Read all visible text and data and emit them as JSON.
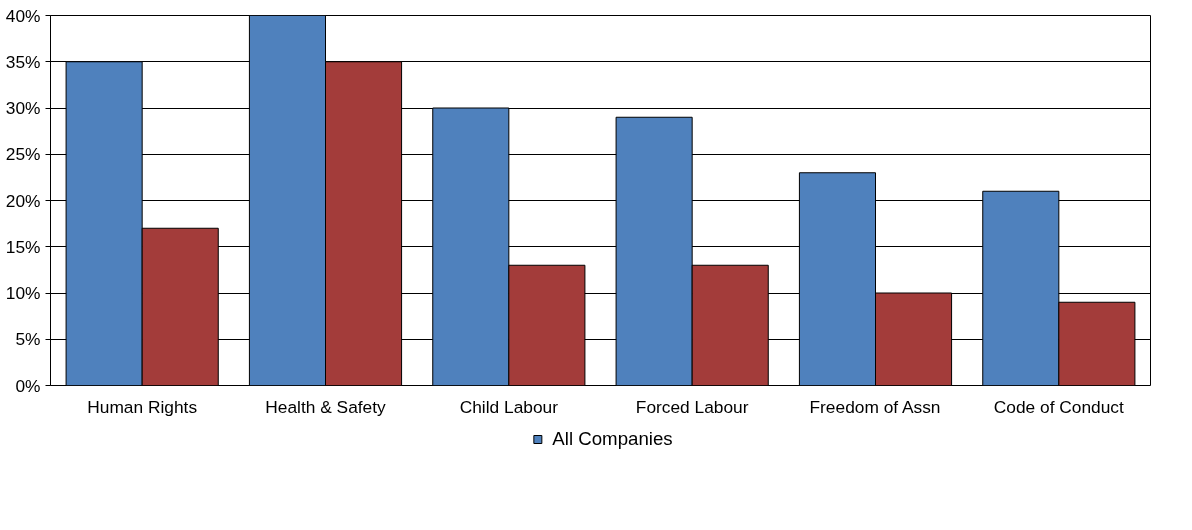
{
  "chart_data": {
    "type": "bar",
    "categories": [
      "Human Rights",
      "Health & Safety",
      "Child Labour",
      "Forced Labour",
      "Freedom of Assn",
      "Code of Conduct"
    ],
    "series": [
      {
        "name": "All Companies",
        "color": "#4f81bd",
        "values": [
          35,
          40,
          30,
          29,
          23,
          21
        ]
      },
      {
        "color": "#a33c3a",
        "values": [
          17,
          35,
          13,
          13,
          10,
          9
        ]
      }
    ],
    "ylim": [
      0,
      40
    ],
    "yticks": [
      {
        "value": 0,
        "label": "0%"
      },
      {
        "value": 5,
        "label": "5%"
      },
      {
        "value": 10,
        "label": "10%"
      },
      {
        "value": 15,
        "label": "15%"
      },
      {
        "value": 20,
        "label": "20%"
      },
      {
        "value": 25,
        "label": "25%"
      },
      {
        "value": 30,
        "label": "30%"
      },
      {
        "value": 35,
        "label": "35%"
      },
      {
        "value": 40,
        "label": "40%"
      }
    ],
    "grid": "y",
    "legend": "bottom"
  }
}
